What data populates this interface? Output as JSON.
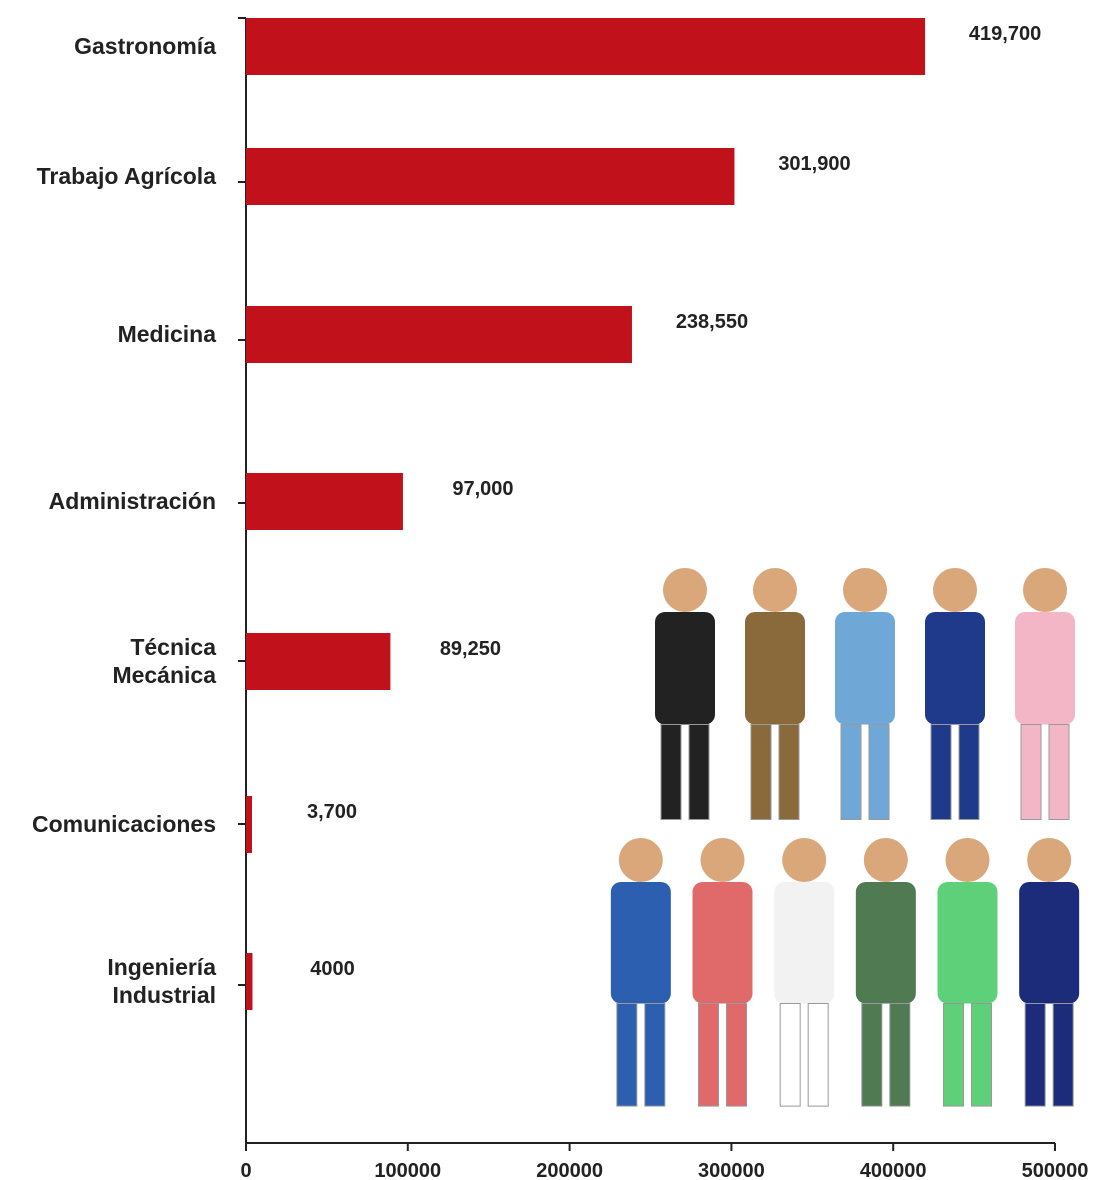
{
  "chart_data": {
    "type": "bar",
    "orientation": "horizontal",
    "categories": [
      "Gastronomía",
      "Trabajo Agrícola",
      "Medicina",
      "Administración",
      "Técnica\nMecánica",
      "Comunicaciones",
      "Ingeniería\nIndustrial"
    ],
    "values": [
      419700,
      301900,
      238550,
      97000,
      89250,
      3700,
      4000
    ],
    "value_labels": [
      "419,700",
      "301,900",
      "238,550",
      "97,000",
      "89,250",
      "3,700",
      "4000"
    ],
    "color": "#c1121c",
    "xlim": [
      0,
      500000
    ],
    "xticks": [
      0,
      100000,
      200000,
      300000,
      400000,
      500000
    ],
    "grid": false
  }
}
